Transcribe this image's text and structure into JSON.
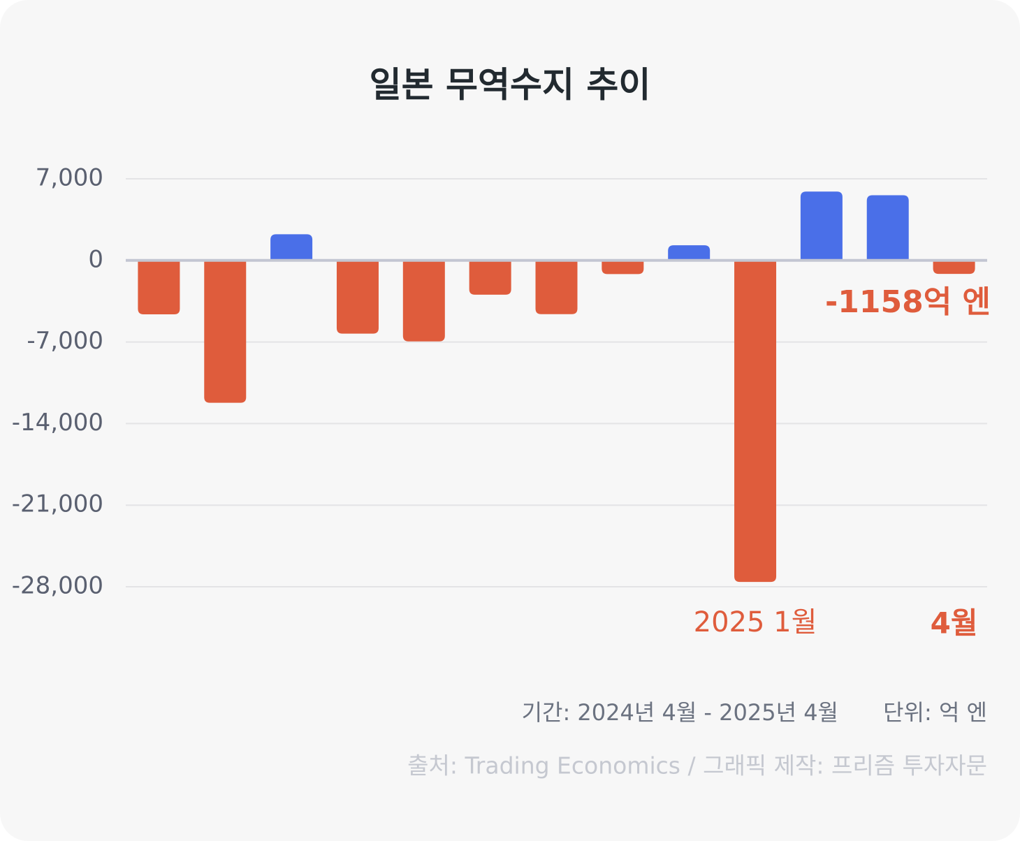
{
  "chart_data": {
    "type": "bar",
    "title": "일본 무역수지 추이",
    "values": [
      -4625,
      -12213,
      2240,
      -6280,
      -6950,
      -2940,
      -4610,
      -1170,
      1300,
      -27588,
      5905,
      5590,
      -1158
    ],
    "positive_color": "#4a6fe8",
    "negative_color": "#df5c3c",
    "ylim": [
      -28000,
      7000
    ],
    "yticks": [
      {
        "value": 7000,
        "label": "7,000"
      },
      0,
      {
        "value": -7000,
        "label": "-7,000"
      },
      {
        "value": -14000,
        "label": "-14,000"
      },
      {
        "value": -21000,
        "label": "-21,000"
      },
      {
        "value": -28000,
        "label": "-28,000"
      }
    ],
    "grid": true,
    "annotations": [
      "-1158억 엔",
      "2025 1월",
      "4월"
    ],
    "period": "기간: 2024년 4월 - 2025년 4월",
    "unit": "단위: 억 엔",
    "source": "출처: Trading Economics / 그래픽 제작: 프리즘 투자자문"
  }
}
